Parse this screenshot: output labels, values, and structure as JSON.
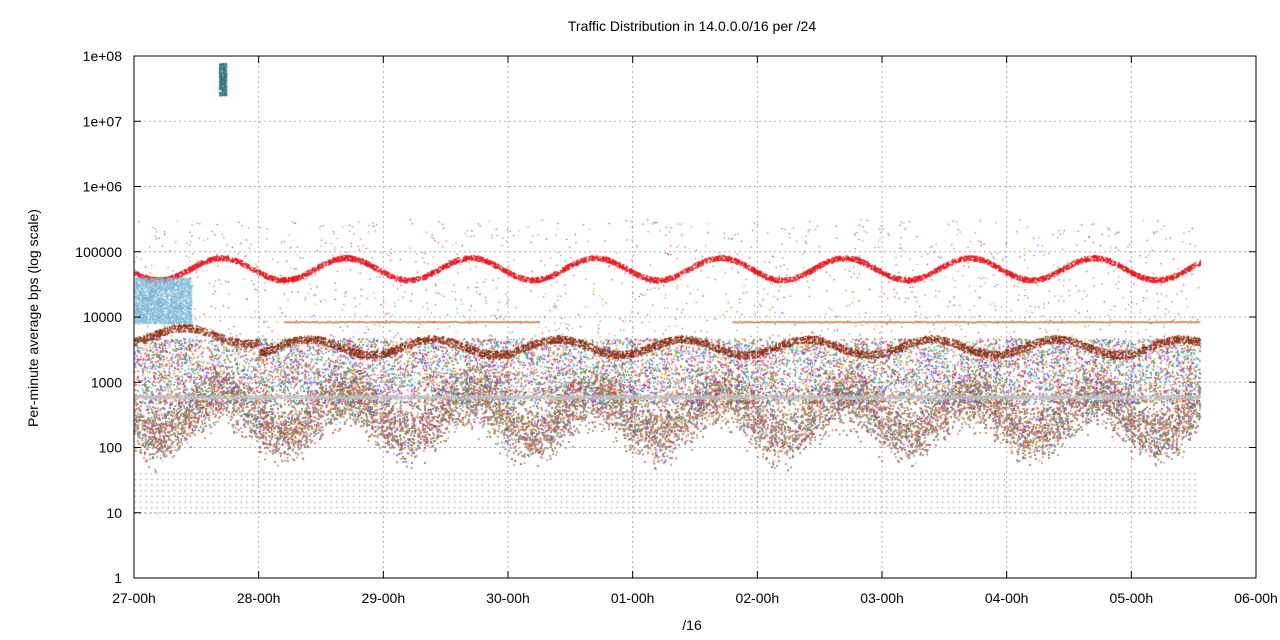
{
  "chart_data": {
    "type": "scatter",
    "title": "Traffic Distribution in 14.0.0.0/16 per /24",
    "xlabel": "/16",
    "ylabel": "Per-minute average bps (log scale)",
    "y_scale": "log",
    "ylim": [
      1,
      100000000
    ],
    "y_ticks": [
      "1",
      "10",
      "100",
      "1000",
      "10000",
      "100000",
      "1e+06",
      "1e+07",
      "1e+08"
    ],
    "x_ticks": [
      "27-00h",
      "28-00h",
      "29-00h",
      "30-00h",
      "01-00h",
      "02-00h",
      "03-00h",
      "04-00h",
      "05-00h",
      "06-00h"
    ],
    "x_unit": "days since 27-00h",
    "xlim": [
      0,
      9
    ],
    "grid": true,
    "series": [
      {
        "color": "#e8151b",
        "level": 55000,
        "amplitude_decades": 0.18,
        "description": "top /24, diurnal"
      },
      {
        "color": "#8b2a0a",
        "level": 3500,
        "amplitude_decades": 0.12
      },
      {
        "color": "#c0c0c0",
        "level": 600,
        "amplitude_decades": 0.0
      },
      {
        "color": "#f0a060",
        "level": 350,
        "amplitude_decades": 0.25
      },
      {
        "color": "#d2691e",
        "level": 8500,
        "amplitude_decades": 0.0
      }
    ]
  }
}
